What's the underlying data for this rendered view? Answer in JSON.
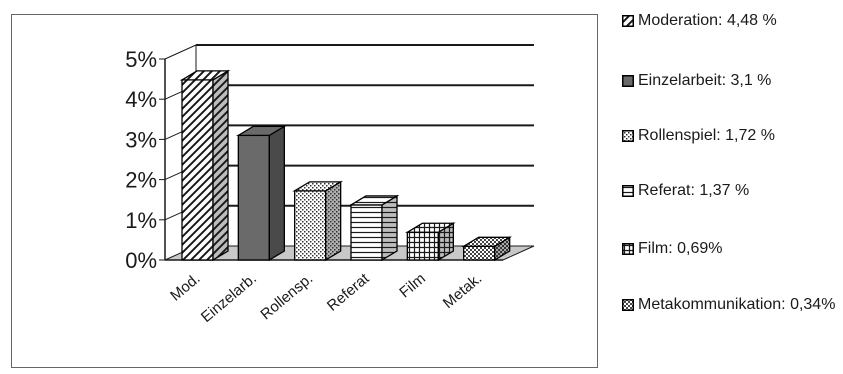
{
  "chart_data": {
    "type": "bar",
    "categories": [
      "Mod.",
      "Einzelarb.",
      "Rollensp.",
      "Referat",
      "Film",
      "Metak."
    ],
    "values": [
      4.48,
      3.1,
      1.72,
      1.37,
      0.69,
      0.34
    ],
    "yticks": [
      "0%",
      "1%",
      "2%",
      "3%",
      "4%",
      "5%"
    ],
    "ylim": [
      0,
      5
    ],
    "grid": true,
    "legend_position": "right",
    "patterns": [
      "diagonal",
      "solid-dark",
      "dots",
      "horizontal",
      "grid",
      "checker"
    ],
    "legend": [
      "Moderation: 4,48 %",
      "Einzelarbeit: 3,1 %",
      "Rollenspiel: 1,72 %",
      "Referat: 1,37 %",
      "Film: 0,69%",
      "Metakommunikation: 0,34%"
    ]
  },
  "colors": {
    "floor": "#c8c8c8",
    "solid_bar": "#6a6a6a",
    "axis": "#1a1a1a"
  }
}
